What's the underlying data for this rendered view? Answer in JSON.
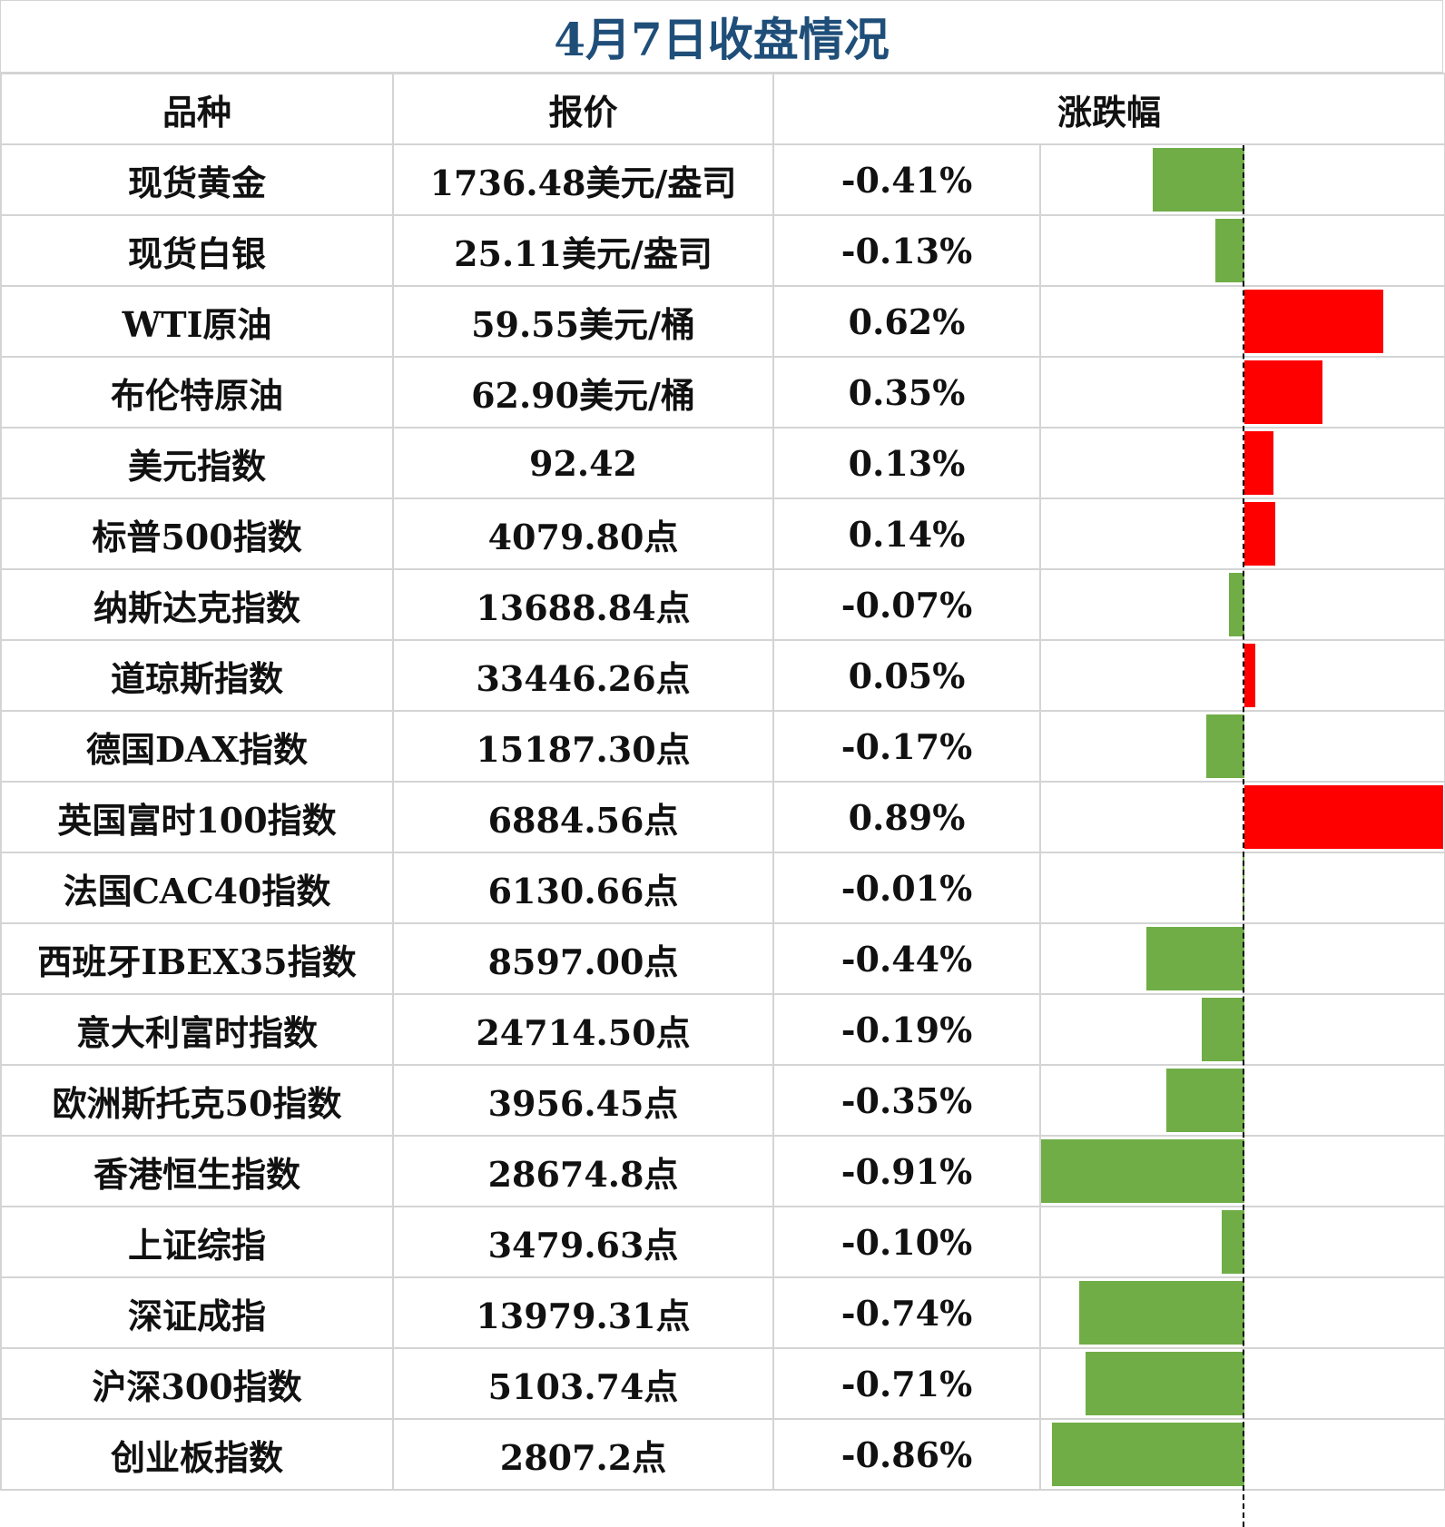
{
  "title": "4月7日收盘情况",
  "headers": [
    "品种",
    "报价",
    "涨跌幅"
  ],
  "colors": {
    "up": "#ff0000",
    "down": "#70ad47",
    "title": "#1f4e79"
  },
  "chart_data": {
    "type": "bar",
    "orientation": "horizontal",
    "categories": [
      "现货黄金",
      "现货白银",
      "WTI原油",
      "布伦特原油",
      "美元指数",
      "标普500指数",
      "纳斯达克指数",
      "道琼斯指数",
      "德国DAX指数",
      "英国富时100指数",
      "法国CAC40指数",
      "西班牙IBEX35指数",
      "意大利富时指数",
      "欧洲斯托克50指数",
      "香港恒生指数",
      "上证综指",
      "深证成指",
      "沪深300指数",
      "创业板指数"
    ],
    "prices": [
      "1736.48美元/盎司",
      "25.11美元/盎司",
      "59.55美元/桶",
      "62.90美元/桶",
      "92.42",
      "4079.80点",
      "13688.84点",
      "33446.26点",
      "15187.30点",
      "6884.56点",
      "6130.66点",
      "8597.00点",
      "24714.50点",
      "3956.45点",
      "28674.8点",
      "3479.63点",
      "13979.31点",
      "5103.74点",
      "2807.2点"
    ],
    "labels": [
      "-0.41%",
      "-0.13%",
      "0.62%",
      "0.35%",
      "0.13%",
      "0.14%",
      "-0.07%",
      "0.05%",
      "-0.17%",
      "0.89%",
      "-0.01%",
      "-0.44%",
      "-0.19%",
      "-0.35%",
      "-0.91%",
      "-0.10%",
      "-0.74%",
      "-0.71%",
      "-0.86%"
    ],
    "values": [
      -0.41,
      -0.13,
      0.62,
      0.35,
      0.13,
      0.14,
      -0.07,
      0.05,
      -0.17,
      0.89,
      -0.01,
      -0.44,
      -0.19,
      -0.35,
      -0.91,
      -0.1,
      -0.74,
      -0.71,
      -0.86
    ]
  }
}
